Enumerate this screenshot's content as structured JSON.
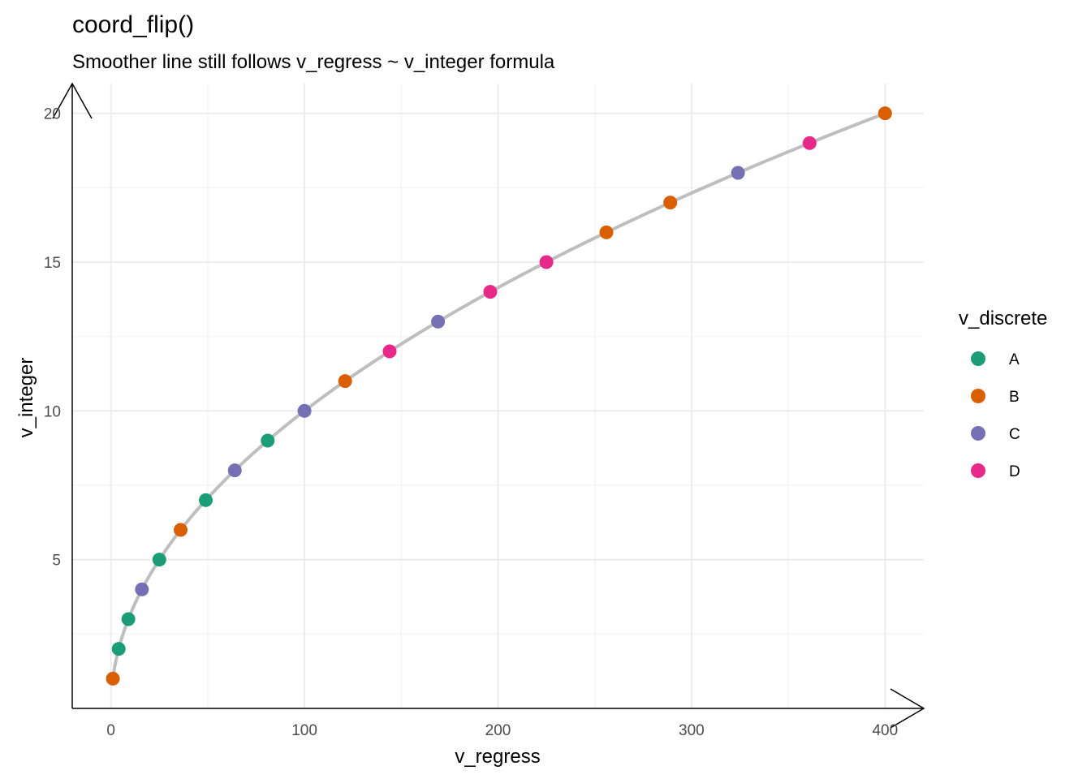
{
  "chart_data": {
    "type": "scatter",
    "title": "coord_flip()",
    "subtitle": "Smoother line still follows v_regress ~ v_integer formula",
    "xlabel": "v_regress",
    "ylabel": "v_integer",
    "xlim": [
      -20,
      420
    ],
    "ylim": [
      0,
      21
    ],
    "x_ticks": [
      0,
      100,
      200,
      300,
      400
    ],
    "y_ticks": [
      5,
      10,
      15,
      20
    ],
    "x_minor": [
      50,
      150,
      250,
      350
    ],
    "y_minor": [
      2.5,
      7.5,
      12.5,
      17.5
    ],
    "grid": true,
    "legend": {
      "title": "v_discrete",
      "position": "right",
      "entries": [
        {
          "label": "A",
          "color": "#1B9E77"
        },
        {
          "label": "B",
          "color": "#D95F02"
        },
        {
          "label": "C",
          "color": "#7570B3"
        },
        {
          "label": "D",
          "color": "#E7298A"
        }
      ]
    },
    "smoother": {
      "formula": "v_regress = v_integer^2",
      "color": "#bebebe"
    },
    "points": [
      {
        "x": 1,
        "y": 1,
        "group": "B"
      },
      {
        "x": 4,
        "y": 2,
        "group": "A"
      },
      {
        "x": 9,
        "y": 3,
        "group": "A"
      },
      {
        "x": 16,
        "y": 4,
        "group": "C"
      },
      {
        "x": 25,
        "y": 5,
        "group": "A"
      },
      {
        "x": 36,
        "y": 6,
        "group": "B"
      },
      {
        "x": 49,
        "y": 7,
        "group": "A"
      },
      {
        "x": 64,
        "y": 8,
        "group": "C"
      },
      {
        "x": 81,
        "y": 9,
        "group": "A"
      },
      {
        "x": 100,
        "y": 10,
        "group": "C"
      },
      {
        "x": 121,
        "y": 11,
        "group": "B"
      },
      {
        "x": 144,
        "y": 12,
        "group": "D"
      },
      {
        "x": 169,
        "y": 13,
        "group": "C"
      },
      {
        "x": 196,
        "y": 14,
        "group": "D"
      },
      {
        "x": 225,
        "y": 15,
        "group": "D"
      },
      {
        "x": 256,
        "y": 16,
        "group": "B"
      },
      {
        "x": 289,
        "y": 17,
        "group": "B"
      },
      {
        "x": 324,
        "y": 18,
        "group": "C"
      },
      {
        "x": 361,
        "y": 19,
        "group": "D"
      },
      {
        "x": 400,
        "y": 20,
        "group": "B"
      }
    ]
  }
}
